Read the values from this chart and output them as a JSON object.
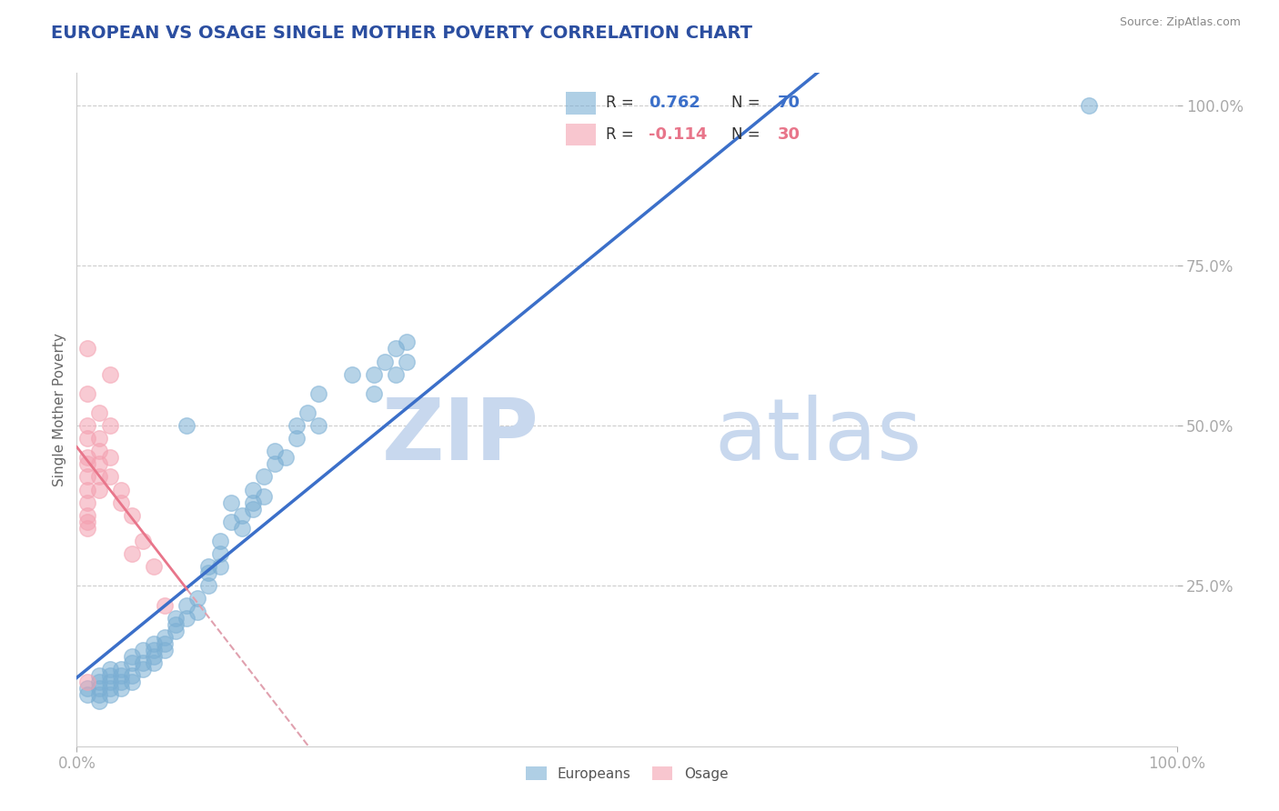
{
  "title": "EUROPEAN VS OSAGE SINGLE MOTHER POVERTY CORRELATION CHART",
  "source": "Source: ZipAtlas.com",
  "ylabel": "Single Mother Poverty",
  "legend_eu": "Europeans",
  "legend_osage": "Osage",
  "r_eu": 0.762,
  "n_eu": 70,
  "r_osage": -0.114,
  "n_osage": 30,
  "blue_color": "#7BAFD4",
  "pink_color": "#F4A0B0",
  "blue_line_color": "#3B6FC9",
  "pink_line_color": "#E8758A",
  "dashed_line_color": "#E0A0AE",
  "watermark_zip": "ZIP",
  "watermark_atlas": "atlas",
  "watermark_color": "#C8D8EE",
  "title_color": "#2B4EA0",
  "title_fontsize": 14,
  "source_color": "#888888",
  "tick_color": "#5580CC",
  "ylabel_color": "#666666",
  "blue_scatter": [
    [
      0.01,
      0.08
    ],
    [
      0.01,
      0.09
    ],
    [
      0.02,
      0.07
    ],
    [
      0.02,
      0.09
    ],
    [
      0.02,
      0.1
    ],
    [
      0.02,
      0.11
    ],
    [
      0.02,
      0.08
    ],
    [
      0.03,
      0.09
    ],
    [
      0.03,
      0.1
    ],
    [
      0.03,
      0.12
    ],
    [
      0.03,
      0.11
    ],
    [
      0.03,
      0.08
    ],
    [
      0.04,
      0.1
    ],
    [
      0.04,
      0.12
    ],
    [
      0.04,
      0.11
    ],
    [
      0.04,
      0.09
    ],
    [
      0.05,
      0.13
    ],
    [
      0.05,
      0.11
    ],
    [
      0.05,
      0.1
    ],
    [
      0.05,
      0.14
    ],
    [
      0.06,
      0.15
    ],
    [
      0.06,
      0.13
    ],
    [
      0.06,
      0.12
    ],
    [
      0.07,
      0.16
    ],
    [
      0.07,
      0.14
    ],
    [
      0.07,
      0.15
    ],
    [
      0.07,
      0.13
    ],
    [
      0.08,
      0.17
    ],
    [
      0.08,
      0.15
    ],
    [
      0.08,
      0.16
    ],
    [
      0.09,
      0.18
    ],
    [
      0.09,
      0.2
    ],
    [
      0.09,
      0.19
    ],
    [
      0.1,
      0.22
    ],
    [
      0.1,
      0.2
    ],
    [
      0.1,
      0.5
    ],
    [
      0.11,
      0.23
    ],
    [
      0.11,
      0.21
    ],
    [
      0.12,
      0.25
    ],
    [
      0.12,
      0.27
    ],
    [
      0.12,
      0.28
    ],
    [
      0.13,
      0.3
    ],
    [
      0.13,
      0.28
    ],
    [
      0.13,
      0.32
    ],
    [
      0.14,
      0.35
    ],
    [
      0.14,
      0.38
    ],
    [
      0.15,
      0.36
    ],
    [
      0.15,
      0.34
    ],
    [
      0.16,
      0.38
    ],
    [
      0.16,
      0.4
    ],
    [
      0.16,
      0.37
    ],
    [
      0.17,
      0.42
    ],
    [
      0.17,
      0.39
    ],
    [
      0.18,
      0.44
    ],
    [
      0.18,
      0.46
    ],
    [
      0.19,
      0.45
    ],
    [
      0.2,
      0.48
    ],
    [
      0.2,
      0.5
    ],
    [
      0.21,
      0.52
    ],
    [
      0.22,
      0.5
    ],
    [
      0.22,
      0.55
    ],
    [
      0.25,
      0.58
    ],
    [
      0.27,
      0.55
    ],
    [
      0.27,
      0.58
    ],
    [
      0.28,
      0.6
    ],
    [
      0.29,
      0.58
    ],
    [
      0.29,
      0.62
    ],
    [
      0.3,
      0.6
    ],
    [
      0.3,
      0.63
    ],
    [
      0.92,
      1.0
    ]
  ],
  "pink_scatter": [
    [
      0.01,
      0.62
    ],
    [
      0.01,
      0.55
    ],
    [
      0.01,
      0.5
    ],
    [
      0.01,
      0.48
    ],
    [
      0.01,
      0.45
    ],
    [
      0.01,
      0.44
    ],
    [
      0.01,
      0.42
    ],
    [
      0.01,
      0.4
    ],
    [
      0.01,
      0.38
    ],
    [
      0.01,
      0.36
    ],
    [
      0.01,
      0.35
    ],
    [
      0.01,
      0.34
    ],
    [
      0.02,
      0.52
    ],
    [
      0.02,
      0.48
    ],
    [
      0.02,
      0.46
    ],
    [
      0.02,
      0.44
    ],
    [
      0.02,
      0.42
    ],
    [
      0.02,
      0.4
    ],
    [
      0.03,
      0.58
    ],
    [
      0.03,
      0.5
    ],
    [
      0.03,
      0.45
    ],
    [
      0.03,
      0.42
    ],
    [
      0.04,
      0.4
    ],
    [
      0.04,
      0.38
    ],
    [
      0.05,
      0.36
    ],
    [
      0.05,
      0.3
    ],
    [
      0.06,
      0.32
    ],
    [
      0.07,
      0.28
    ],
    [
      0.08,
      0.22
    ],
    [
      0.01,
      0.1
    ]
  ],
  "xlim": [
    0,
    1.0
  ],
  "ylim": [
    0,
    1.05
  ],
  "yticks": [
    0.25,
    0.5,
    0.75,
    1.0
  ],
  "ytick_labels": [
    "25.0%",
    "50.0%",
    "75.0%",
    "100.0%"
  ],
  "xticks": [
    0.0,
    1.0
  ],
  "xtick_labels": [
    "0.0%",
    "100.0%"
  ]
}
